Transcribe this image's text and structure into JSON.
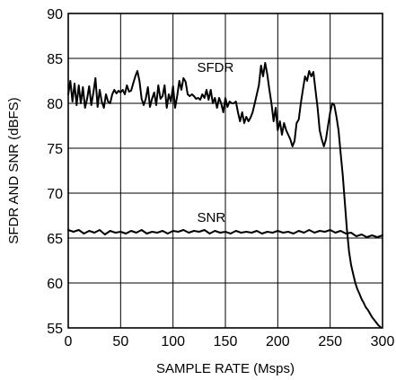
{
  "chart_data": {
    "type": "line",
    "title": "",
    "xlabel": "SAMPLE RATE (Msps)",
    "ylabel": "SFDR AND SNR (dBFS)",
    "xlim": [
      0,
      300
    ],
    "ylim": [
      55,
      90
    ],
    "xticks": [
      0,
      50,
      100,
      150,
      200,
      250,
      300
    ],
    "yticks": [
      55,
      60,
      65,
      70,
      75,
      80,
      85,
      90
    ],
    "grid": true,
    "legend": "none",
    "annotations": [
      {
        "text": "SFDR",
        "x": 123,
        "y": 83.5
      },
      {
        "text": "SNR",
        "x": 123,
        "y": 66.8
      }
    ],
    "series": [
      {
        "name": "SFDR",
        "x": [
          0,
          2,
          4,
          6,
          8,
          10,
          12,
          14,
          16,
          18,
          20,
          22,
          24,
          26,
          28,
          30,
          32,
          34,
          36,
          38,
          40,
          42,
          44,
          46,
          48,
          50,
          52,
          54,
          56,
          58,
          60,
          62,
          64,
          66,
          68,
          70,
          72,
          74,
          76,
          78,
          80,
          82,
          84,
          86,
          88,
          90,
          92,
          94,
          96,
          98,
          100,
          102,
          104,
          106,
          108,
          110,
          112,
          114,
          116,
          118,
          120,
          122,
          124,
          126,
          128,
          130,
          132,
          134,
          136,
          138,
          140,
          142,
          144,
          146,
          148,
          150,
          152,
          154,
          156,
          158,
          160,
          162,
          164,
          166,
          168,
          170,
          172,
          174,
          176,
          178,
          180,
          182,
          184,
          186,
          188,
          190,
          192,
          194,
          196,
          198,
          200,
          202,
          204,
          206,
          208,
          210,
          212,
          214,
          216,
          218,
          220,
          222,
          224,
          226,
          228,
          230,
          232,
          234,
          236,
          238,
          240,
          242,
          244,
          246,
          248,
          250,
          252,
          254,
          256,
          258,
          260,
          262,
          264,
          266,
          268,
          270,
          272,
          274,
          276,
          278,
          280,
          282,
          284,
          286,
          288,
          290,
          292,
          294,
          296,
          298
        ],
        "values": [
          81.0,
          82.5,
          80.2,
          82.2,
          79.8,
          82.0,
          80.0,
          81.8,
          79.5,
          80.5,
          81.9,
          79.8,
          81.2,
          82.8,
          79.6,
          81.5,
          80.2,
          79.5,
          81.0,
          80.2,
          80.0,
          81.0,
          81.5,
          81.1,
          81.4,
          81.2,
          81.5,
          81.0,
          82.0,
          81.3,
          81.4,
          82.2,
          83.0,
          83.6,
          82.5,
          80.5,
          79.8,
          80.5,
          81.8,
          79.6,
          80.5,
          81.2,
          79.8,
          82.0,
          80.5,
          80.8,
          82.0,
          79.5,
          81.0,
          80.2,
          81.9,
          79.5,
          80.8,
          82.5,
          81.5,
          82.8,
          82.4,
          81.0,
          80.8,
          81.0,
          80.8,
          80.5,
          80.6,
          80.4,
          81.0,
          80.6,
          81.5,
          80.4,
          81.5,
          80.0,
          80.6,
          79.5,
          80.6,
          80.0,
          79.0,
          80.6,
          79.6,
          80.2,
          80.0,
          80.0,
          80.2,
          79.0,
          78.0,
          79.0,
          77.8,
          78.5,
          78.0,
          78.4,
          79.0,
          80.0,
          81.0,
          82.0,
          84.2,
          83.0,
          84.5,
          83.2,
          81.5,
          80.0,
          78.0,
          79.5,
          77.0,
          78.0,
          76.5,
          77.8,
          77.0,
          76.5,
          76.0,
          75.2,
          75.8,
          77.8,
          78.2,
          80.0,
          81.5,
          83.0,
          82.5,
          83.6,
          83.0,
          83.5,
          81.5,
          79.5,
          77.0,
          76.0,
          75.2,
          76.0,
          77.5,
          79.0,
          80.0,
          79.8,
          78.5,
          77.0,
          74.5,
          72.0,
          69.0,
          66.0,
          63.5,
          62.0,
          61.0,
          60.0,
          59.3,
          58.8,
          58.2,
          57.8,
          57.3,
          57.0,
          56.6,
          56.2,
          55.9,
          55.6,
          55.3,
          55.1
        ]
      },
      {
        "name": "SNR",
        "x": [
          0,
          5,
          10,
          15,
          20,
          25,
          30,
          35,
          40,
          45,
          50,
          55,
          60,
          65,
          70,
          75,
          80,
          85,
          90,
          95,
          100,
          105,
          110,
          115,
          120,
          125,
          130,
          135,
          140,
          145,
          150,
          155,
          160,
          165,
          170,
          175,
          180,
          185,
          190,
          195,
          200,
          205,
          210,
          215,
          220,
          225,
          230,
          235,
          240,
          245,
          250,
          255,
          260,
          265,
          270,
          275,
          280,
          285,
          290,
          295,
          300
        ],
        "values": [
          65.9,
          65.7,
          65.9,
          65.5,
          65.8,
          65.6,
          65.9,
          65.4,
          65.8,
          65.6,
          65.7,
          65.5,
          65.8,
          65.6,
          65.9,
          65.5,
          65.7,
          65.6,
          65.8,
          65.5,
          65.8,
          65.7,
          65.9,
          65.6,
          65.8,
          65.7,
          65.9,
          65.5,
          65.8,
          65.6,
          65.7,
          65.5,
          65.8,
          65.6,
          65.7,
          65.6,
          65.8,
          65.5,
          65.7,
          65.6,
          65.8,
          65.6,
          65.7,
          65.5,
          65.8,
          65.6,
          65.9,
          65.6,
          65.8,
          65.7,
          65.9,
          65.6,
          65.8,
          65.5,
          65.6,
          65.2,
          65.4,
          65.1,
          65.3,
          65.1,
          65.3
        ]
      }
    ]
  }
}
